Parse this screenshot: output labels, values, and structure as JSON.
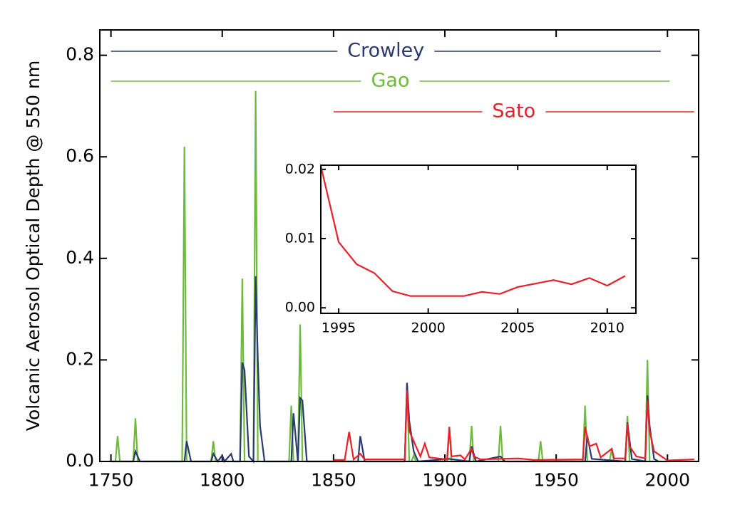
{
  "chart_data": [
    {
      "type": "line",
      "ylabel": "Volcanic Aerosol Optical Depth @ 550 nm",
      "xlim": [
        1745,
        2014
      ],
      "xticks": [
        1750,
        1800,
        1850,
        1900,
        1950,
        2000
      ],
      "ylim": [
        0,
        0.85
      ],
      "yticks": [
        {
          "value": 0,
          "label": "0.0"
        },
        0.2,
        0.4,
        0.6,
        0.8
      ],
      "series": [
        {
          "name": "Gao",
          "color": "#6dbb3c",
          "span": [
            1750,
            2001
          ],
          "x": [
            1750,
            1752,
            1753,
            1754,
            1760,
            1761,
            1762,
            1782,
            1783,
            1784,
            1795,
            1796,
            1797,
            1808,
            1809,
            1810,
            1814,
            1815,
            1816,
            1830,
            1831,
            1832,
            1834,
            1835,
            1836,
            1882,
            1883,
            1884,
            1885,
            1886,
            1887,
            1901,
            1902,
            1903,
            1911,
            1912,
            1913,
            1924,
            1925,
            1926,
            1942,
            1943,
            1944,
            1962,
            1963,
            1964,
            1974,
            1975,
            1976,
            1981,
            1982,
            1983,
            1990,
            1991,
            1992,
            2000
          ],
          "values": [
            0,
            0,
            0.05,
            0,
            0,
            0.085,
            0,
            0,
            0.62,
            0,
            0,
            0.04,
            0,
            0,
            0.36,
            0,
            0,
            0.73,
            0,
            0,
            0.11,
            0,
            0,
            0.27,
            0,
            0,
            0.145,
            0,
            0,
            0.012,
            0,
            0,
            0.06,
            0,
            0,
            0.07,
            0,
            0,
            0.07,
            0,
            0,
            0.04,
            0,
            0,
            0.11,
            0,
            0,
            0.025,
            0,
            0,
            0.09,
            0,
            0,
            0.2,
            0,
            0
          ]
        },
        {
          "name": "Crowley",
          "color": "#2b3a6e",
          "span": [
            1750,
            1997
          ],
          "x": [
            1750,
            1760,
            1761,
            1763,
            1783,
            1784,
            1786,
            1795,
            1796,
            1798,
            1800,
            1801,
            1804,
            1805,
            1808,
            1809,
            1810,
            1812,
            1814,
            1815,
            1816,
            1817,
            1819,
            1831,
            1832,
            1834,
            1835,
            1836,
            1838,
            1861,
            1862,
            1864,
            1882,
            1883,
            1884,
            1886,
            1888,
            1902,
            1911,
            1912,
            1914,
            1925,
            1927,
            1963,
            1964,
            1966,
            1981,
            1982,
            1984,
            1990,
            1991,
            1992,
            1994,
            1996
          ],
          "values": [
            0,
            0,
            0.02,
            0,
            0,
            0.04,
            0,
            0,
            0.015,
            0,
            0.012,
            0,
            0.015,
            0,
            0,
            0.195,
            0.18,
            0.01,
            0,
            0.365,
            0.2,
            0.07,
            0,
            0,
            0.095,
            0,
            0.125,
            0.12,
            0,
            0,
            0.05,
            0,
            0,
            0.155,
            0.08,
            0.02,
            0,
            0.005,
            0,
            0.03,
            0,
            0.01,
            0,
            0,
            0.05,
            0.005,
            0,
            0.077,
            0.005,
            0,
            0.13,
            0.07,
            0.005,
            0
          ]
        },
        {
          "name": "Sato",
          "color": "#e8202a",
          "span": [
            1850,
            2012
          ],
          "x": [
            1850,
            1855,
            1857,
            1859,
            1862,
            1864,
            1882,
            1883,
            1884,
            1886,
            1889,
            1891,
            1893,
            1901,
            1902,
            1903,
            1907,
            1909,
            1912,
            1913,
            1916,
            1933,
            1940,
            1962,
            1963,
            1965,
            1968,
            1970,
            1975,
            1976,
            1981,
            1982,
            1983,
            1986,
            1990,
            1991,
            1992,
            1994,
            2000,
            2012
          ],
          "values": [
            0.003,
            0.003,
            0.058,
            0.004,
            0.015,
            0.004,
            0.004,
            0.14,
            0.06,
            0.04,
            0.01,
            0.035,
            0.008,
            0.004,
            0.068,
            0.01,
            0.012,
            0.004,
            0.025,
            0.01,
            0.004,
            0.006,
            0.003,
            0.004,
            0.068,
            0.03,
            0.035,
            0.008,
            0.025,
            0.006,
            0.006,
            0.075,
            0.03,
            0.01,
            0.006,
            0.12,
            0.06,
            0.02,
            0.002,
            0.004
          ]
        }
      ]
    },
    {
      "type": "line",
      "xlim": [
        1994,
        2011.6
      ],
      "xticks": [
        1995,
        2000,
        2005,
        2010
      ],
      "ylim": [
        -0.0008,
        0.0206
      ],
      "yticks": [
        {
          "value": 0,
          "label": "0.00"
        },
        {
          "value": 0.01,
          "label": "0.01"
        },
        {
          "value": 0.02,
          "label": "0.02"
        }
      ],
      "series": [
        {
          "color": "#e8202a",
          "x": [
            1994,
            1995,
            1996,
            1997,
            1998,
            1999,
            2000,
            2001,
            2002,
            2003,
            2004,
            2005,
            2006,
            2007,
            2008,
            2009,
            2010,
            2011
          ],
          "values": [
            0.0205,
            0.0095,
            0.0063,
            0.005,
            0.0024,
            0.0017,
            0.0017,
            0.0017,
            0.0017,
            0.0023,
            0.002,
            0.003,
            0.0035,
            0.004,
            0.0034,
            0.0043,
            0.0032,
            0.0046
          ]
        }
      ]
    }
  ]
}
